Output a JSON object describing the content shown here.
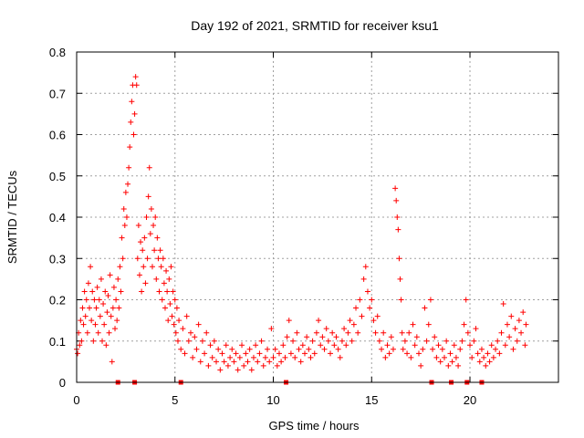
{
  "chart_data": {
    "type": "scatter",
    "title": "Day 192 of 2021, SRMTID for receiver ksu1",
    "xlabel": "GPS time / hours",
    "ylabel": "SRMTID / TECUs",
    "xlim": [
      0,
      24.5
    ],
    "ylim": [
      0,
      0.8
    ],
    "xticks": [
      0,
      5,
      10,
      15,
      20
    ],
    "yticks": [
      0,
      0.1,
      0.2,
      0.3,
      0.4,
      0.5,
      0.6,
      0.7,
      0.8
    ],
    "xtick_labels": [
      "0",
      "5",
      "10",
      "15",
      "20"
    ],
    "ytick_labels": [
      "0",
      "0.1",
      "0.2",
      "0.3",
      "0.4",
      "0.5",
      "0.6",
      "0.7",
      "0.8"
    ],
    "grid": true,
    "series_color": "#ff0000",
    "marker": "+",
    "series": [
      {
        "name": "SRMTID",
        "points": [
          [
            0.0,
            0.08
          ],
          [
            0.05,
            0.07
          ],
          [
            0.1,
            0.12
          ],
          [
            0.15,
            0.09
          ],
          [
            0.2,
            0.15
          ],
          [
            0.25,
            0.1
          ],
          [
            0.3,
            0.18
          ],
          [
            0.35,
            0.14
          ],
          [
            0.4,
            0.22
          ],
          [
            0.45,
            0.16
          ],
          [
            0.5,
            0.2
          ],
          [
            0.55,
            0.12
          ],
          [
            0.6,
            0.24
          ],
          [
            0.65,
            0.18
          ],
          [
            0.7,
            0.28
          ],
          [
            0.75,
            0.15
          ],
          [
            0.8,
            0.22
          ],
          [
            0.85,
            0.1
          ],
          [
            0.9,
            0.2
          ],
          [
            0.95,
            0.14
          ],
          [
            1.0,
            0.18
          ],
          [
            1.05,
            0.23
          ],
          [
            1.1,
            0.12
          ],
          [
            1.15,
            0.2
          ],
          [
            1.2,
            0.16
          ],
          [
            1.25,
            0.25
          ],
          [
            1.3,
            0.1
          ],
          [
            1.35,
            0.19
          ],
          [
            1.4,
            0.14
          ],
          [
            1.45,
            0.22
          ],
          [
            1.5,
            0.09
          ],
          [
            1.55,
            0.17
          ],
          [
            1.6,
            0.21
          ],
          [
            1.65,
            0.12
          ],
          [
            1.7,
            0.26
          ],
          [
            1.75,
            0.16
          ],
          [
            1.8,
            0.05
          ],
          [
            1.85,
            0.18
          ],
          [
            1.9,
            0.23
          ],
          [
            1.95,
            0.13
          ],
          [
            2.0,
            0.2
          ],
          [
            2.05,
            0.15
          ],
          [
            2.1,
            0.25
          ],
          [
            2.15,
            0.18
          ],
          [
            2.2,
            0.28
          ],
          [
            2.25,
            0.22
          ],
          [
            2.3,
            0.35
          ],
          [
            2.35,
            0.3
          ],
          [
            2.4,
            0.42
          ],
          [
            2.45,
            0.38
          ],
          [
            2.5,
            0.46
          ],
          [
            2.55,
            0.4
          ],
          [
            2.6,
            0.48
          ],
          [
            2.65,
            0.52
          ],
          [
            2.7,
            0.57
          ],
          [
            2.75,
            0.63
          ],
          [
            2.8,
            0.68
          ],
          [
            2.85,
            0.72
          ],
          [
            2.9,
            0.6
          ],
          [
            2.95,
            0.65
          ],
          [
            3.0,
            0.74
          ],
          [
            3.05,
            0.72
          ],
          [
            3.1,
            0.3
          ],
          [
            3.15,
            0.38
          ],
          [
            3.2,
            0.26
          ],
          [
            3.25,
            0.34
          ],
          [
            3.3,
            0.22
          ],
          [
            3.35,
            0.32
          ],
          [
            3.4,
            0.28
          ],
          [
            3.45,
            0.35
          ],
          [
            3.5,
            0.24
          ],
          [
            3.55,
            0.4
          ],
          [
            3.6,
            0.3
          ],
          [
            3.65,
            0.45
          ],
          [
            3.7,
            0.52
          ],
          [
            3.75,
            0.36
          ],
          [
            3.8,
            0.42
          ],
          [
            3.85,
            0.28
          ],
          [
            3.9,
            0.38
          ],
          [
            3.95,
            0.32
          ],
          [
            4.0,
            0.4
          ],
          [
            4.05,
            0.25
          ],
          [
            4.1,
            0.35
          ],
          [
            4.15,
            0.3
          ],
          [
            4.2,
            0.22
          ],
          [
            4.25,
            0.32
          ],
          [
            4.3,
            0.28
          ],
          [
            4.35,
            0.2
          ],
          [
            4.4,
            0.3
          ],
          [
            4.45,
            0.24
          ],
          [
            4.5,
            0.18
          ],
          [
            4.55,
            0.27
          ],
          [
            4.6,
            0.22
          ],
          [
            4.65,
            0.15
          ],
          [
            4.7,
            0.25
          ],
          [
            4.75,
            0.19
          ],
          [
            4.8,
            0.28
          ],
          [
            4.85,
            0.16
          ],
          [
            4.9,
            0.22
          ],
          [
            4.95,
            0.14
          ],
          [
            5.0,
            0.2
          ],
          [
            5.05,
            0.12
          ],
          [
            5.1,
            0.18
          ],
          [
            5.15,
            0.1
          ],
          [
            5.2,
            0.15
          ],
          [
            5.3,
            0.08
          ],
          [
            5.4,
            0.13
          ],
          [
            5.5,
            0.07
          ],
          [
            5.6,
            0.16
          ],
          [
            5.7,
            0.1
          ],
          [
            5.8,
            0.12
          ],
          [
            5.9,
            0.06
          ],
          [
            6.0,
            0.11
          ],
          [
            6.1,
            0.08
          ],
          [
            6.2,
            0.14
          ],
          [
            6.3,
            0.05
          ],
          [
            6.4,
            0.1
          ],
          [
            6.5,
            0.07
          ],
          [
            6.6,
            0.12
          ],
          [
            6.7,
            0.04
          ],
          [
            6.8,
            0.09
          ],
          [
            6.9,
            0.06
          ],
          [
            7.0,
            0.1
          ],
          [
            7.1,
            0.05
          ],
          [
            7.2,
            0.08
          ],
          [
            7.3,
            0.03
          ],
          [
            7.4,
            0.07
          ],
          [
            7.5,
            0.05
          ],
          [
            7.6,
            0.09
          ],
          [
            7.7,
            0.04
          ],
          [
            7.8,
            0.06
          ],
          [
            7.9,
            0.08
          ],
          [
            8.0,
            0.05
          ],
          [
            8.1,
            0.07
          ],
          [
            8.2,
            0.03
          ],
          [
            8.3,
            0.06
          ],
          [
            8.4,
            0.09
          ],
          [
            8.5,
            0.04
          ],
          [
            8.6,
            0.07
          ],
          [
            8.7,
            0.05
          ],
          [
            8.8,
            0.08
          ],
          [
            8.9,
            0.03
          ],
          [
            9.0,
            0.06
          ],
          [
            9.1,
            0.09
          ],
          [
            9.2,
            0.05
          ],
          [
            9.3,
            0.07
          ],
          [
            9.4,
            0.1
          ],
          [
            9.5,
            0.04
          ],
          [
            9.6,
            0.06
          ],
          [
            9.7,
            0.08
          ],
          [
            9.8,
            0.05
          ],
          [
            9.9,
            0.13
          ],
          [
            10.0,
            0.06
          ],
          [
            10.1,
            0.08
          ],
          [
            10.2,
            0.04
          ],
          [
            10.3,
            0.07
          ],
          [
            10.4,
            0.05
          ],
          [
            10.5,
            0.09
          ],
          [
            10.6,
            0.06
          ],
          [
            10.7,
            0.11
          ],
          [
            10.8,
            0.15
          ],
          [
            10.9,
            0.07
          ],
          [
            11.0,
            0.1
          ],
          [
            11.1,
            0.06
          ],
          [
            11.2,
            0.12
          ],
          [
            11.3,
            0.08
          ],
          [
            11.4,
            0.05
          ],
          [
            11.5,
            0.09
          ],
          [
            11.6,
            0.07
          ],
          [
            11.7,
            0.11
          ],
          [
            11.8,
            0.08
          ],
          [
            11.9,
            0.06
          ],
          [
            12.0,
            0.1
          ],
          [
            12.1,
            0.07
          ],
          [
            12.2,
            0.12
          ],
          [
            12.3,
            0.15
          ],
          [
            12.4,
            0.09
          ],
          [
            12.5,
            0.11
          ],
          [
            12.6,
            0.08
          ],
          [
            12.7,
            0.13
          ],
          [
            12.8,
            0.1
          ],
          [
            12.9,
            0.07
          ],
          [
            13.0,
            0.12
          ],
          [
            13.1,
            0.09
          ],
          [
            13.2,
            0.11
          ],
          [
            13.3,
            0.08
          ],
          [
            13.4,
            0.06
          ],
          [
            13.5,
            0.1
          ],
          [
            13.6,
            0.13
          ],
          [
            13.7,
            0.09
          ],
          [
            13.8,
            0.12
          ],
          [
            13.9,
            0.15
          ],
          [
            14.0,
            0.1
          ],
          [
            14.1,
            0.14
          ],
          [
            14.2,
            0.18
          ],
          [
            14.3,
            0.12
          ],
          [
            14.4,
            0.2
          ],
          [
            14.5,
            0.16
          ],
          [
            14.6,
            0.25
          ],
          [
            14.7,
            0.28
          ],
          [
            14.8,
            0.22
          ],
          [
            14.9,
            0.18
          ],
          [
            15.0,
            0.2
          ],
          [
            15.1,
            0.15
          ],
          [
            15.2,
            0.12
          ],
          [
            15.3,
            0.16
          ],
          [
            15.4,
            0.1
          ],
          [
            15.5,
            0.08
          ],
          [
            15.6,
            0.12
          ],
          [
            15.7,
            0.06
          ],
          [
            15.8,
            0.09
          ],
          [
            15.9,
            0.07
          ],
          [
            16.0,
            0.11
          ],
          [
            16.1,
            0.08
          ],
          [
            16.2,
            0.47
          ],
          [
            16.25,
            0.44
          ],
          [
            16.3,
            0.4
          ],
          [
            16.35,
            0.37
          ],
          [
            16.4,
            0.3
          ],
          [
            16.45,
            0.25
          ],
          [
            16.5,
            0.2
          ],
          [
            16.55,
            0.12
          ],
          [
            16.6,
            0.08
          ],
          [
            16.7,
            0.1
          ],
          [
            16.8,
            0.07
          ],
          [
            16.9,
            0.12
          ],
          [
            17.0,
            0.06
          ],
          [
            17.1,
            0.14
          ],
          [
            17.2,
            0.09
          ],
          [
            17.3,
            0.11
          ],
          [
            17.4,
            0.07
          ],
          [
            17.5,
            0.04
          ],
          [
            17.6,
            0.08
          ],
          [
            17.7,
            0.18
          ],
          [
            17.8,
            0.1
          ],
          [
            17.9,
            0.14
          ],
          [
            18.0,
            0.2
          ],
          [
            18.1,
            0.08
          ],
          [
            18.2,
            0.11
          ],
          [
            18.3,
            0.06
          ],
          [
            18.4,
            0.09
          ],
          [
            18.5,
            0.05
          ],
          [
            18.6,
            0.08
          ],
          [
            18.7,
            0.06
          ],
          [
            18.8,
            0.1
          ],
          [
            18.9,
            0.04
          ],
          [
            19.0,
            0.07
          ],
          [
            19.1,
            0.05
          ],
          [
            19.2,
            0.09
          ],
          [
            19.3,
            0.06
          ],
          [
            19.4,
            0.04
          ],
          [
            19.5,
            0.08
          ],
          [
            19.6,
            0.1
          ],
          [
            19.7,
            0.14
          ],
          [
            19.8,
            0.2
          ],
          [
            19.9,
            0.12
          ],
          [
            20.0,
            0.09
          ],
          [
            20.1,
            0.06
          ],
          [
            20.2,
            0.1
          ],
          [
            20.3,
            0.13
          ],
          [
            20.4,
            0.07
          ],
          [
            20.5,
            0.05
          ],
          [
            20.6,
            0.08
          ],
          [
            20.7,
            0.06
          ],
          [
            20.8,
            0.04
          ],
          [
            20.9,
            0.07
          ],
          [
            21.0,
            0.05
          ],
          [
            21.1,
            0.09
          ],
          [
            21.2,
            0.06
          ],
          [
            21.3,
            0.08
          ],
          [
            21.4,
            0.1
          ],
          [
            21.5,
            0.07
          ],
          [
            21.6,
            0.12
          ],
          [
            21.7,
            0.19
          ],
          [
            21.8,
            0.09
          ],
          [
            21.9,
            0.14
          ],
          [
            22.0,
            0.11
          ],
          [
            22.1,
            0.16
          ],
          [
            22.2,
            0.08
          ],
          [
            22.3,
            0.13
          ],
          [
            22.4,
            0.1
          ],
          [
            22.5,
            0.15
          ],
          [
            22.6,
            0.12
          ],
          [
            22.7,
            0.17
          ],
          [
            22.8,
            0.09
          ],
          [
            22.85,
            0.14
          ]
        ]
      }
    ],
    "gap_markers": [
      2.1,
      2.95,
      5.3,
      10.65,
      18.05,
      19.05,
      19.85,
      20.6
    ]
  }
}
